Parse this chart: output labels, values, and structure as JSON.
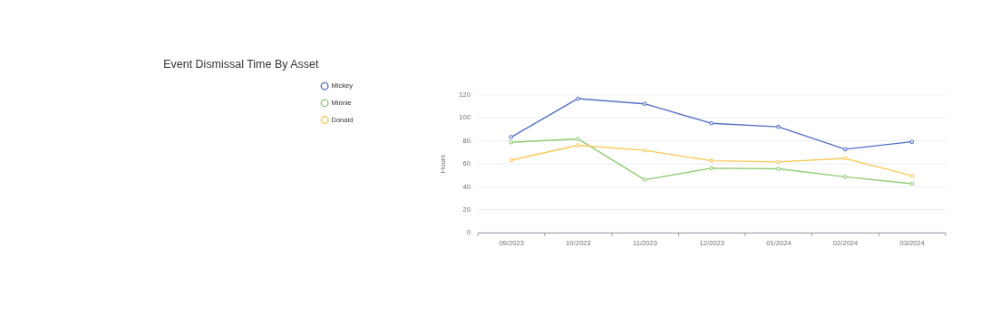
{
  "chart_data": {
    "type": "line",
    "title": "Event Dismissal Time By Asset",
    "ylabel": "Hours",
    "categories": [
      "09/2023",
      "10/2023",
      "11/2023",
      "12/2023",
      "01/2024",
      "02/2024",
      "03/2024"
    ],
    "series": [
      {
        "name": "Mickey",
        "color": "#5470c6",
        "values": [
          83,
          116.5,
          112,
          95,
          92,
          72.5,
          79
        ]
      },
      {
        "name": "Minnie",
        "color": "#91cc75",
        "values": [
          78.5,
          81.5,
          46,
          56,
          55.5,
          48.5,
          42.5
        ]
      },
      {
        "name": "Donald",
        "color": "#fac858",
        "values": [
          63,
          76,
          71.5,
          62.5,
          61.5,
          64.5,
          49.5
        ]
      }
    ],
    "ylim": [
      0,
      120
    ],
    "yticks": [
      0,
      20,
      40,
      60,
      80,
      100,
      120
    ],
    "grid": "y",
    "legend": "top left",
    "marker": "circle",
    "line_style": "solid"
  }
}
